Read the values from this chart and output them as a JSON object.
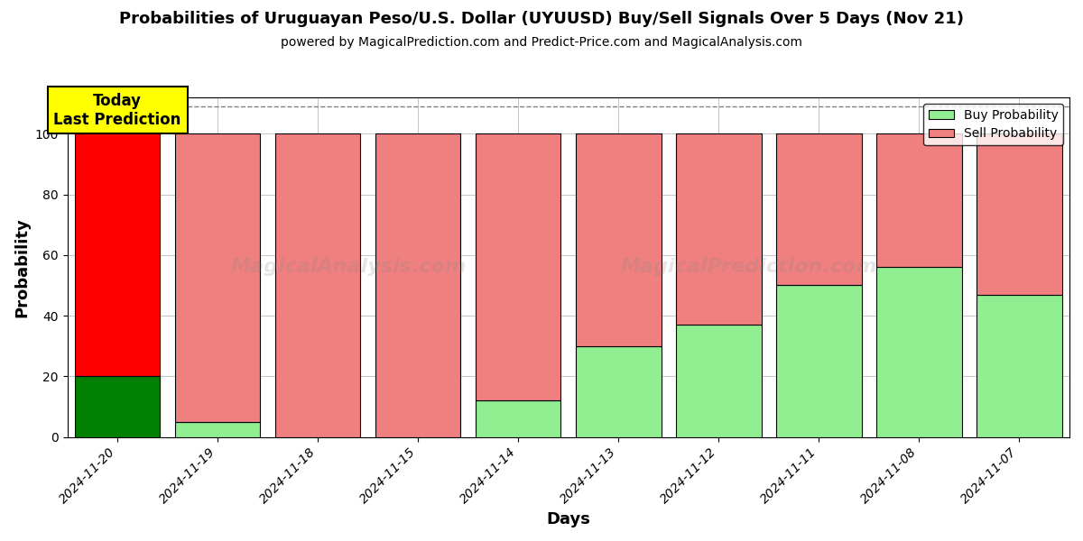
{
  "title": "Probabilities of Uruguayan Peso/U.S. Dollar (UYUUSD) Buy/Sell Signals Over 5 Days (Nov 21)",
  "subtitle": "powered by MagicalPrediction.com and Predict-Price.com and MagicalAnalysis.com",
  "xlabel": "Days",
  "ylabel": "Probability",
  "dates": [
    "2024-11-20",
    "2024-11-19",
    "2024-11-18",
    "2024-11-15",
    "2024-11-14",
    "2024-11-13",
    "2024-11-12",
    "2024-11-11",
    "2024-11-08",
    "2024-11-07"
  ],
  "buy_probs": [
    20,
    5,
    0,
    0,
    12,
    30,
    37,
    50,
    56,
    47
  ],
  "sell_probs": [
    80,
    95,
    100,
    100,
    88,
    70,
    63,
    50,
    44,
    53
  ],
  "today_bar_index": 0,
  "buy_color_today": "#008000",
  "sell_color_today": "#ff0000",
  "buy_color_normal": "#90ee90",
  "sell_color_normal": "#f08080",
  "bar_edge_color": "#000000",
  "today_label_bg": "#ffff00",
  "today_label_text": "Today\nLast Prediction",
  "ylim": [
    0,
    112
  ],
  "yticks": [
    0,
    20,
    40,
    60,
    80,
    100
  ],
  "dashed_line_y": 109,
  "background_color": "#ffffff",
  "grid_color": "#bbbbbb",
  "legend_buy_label": "Buy Probability",
  "legend_sell_label": "Sell Probability",
  "bar_width": 0.85
}
